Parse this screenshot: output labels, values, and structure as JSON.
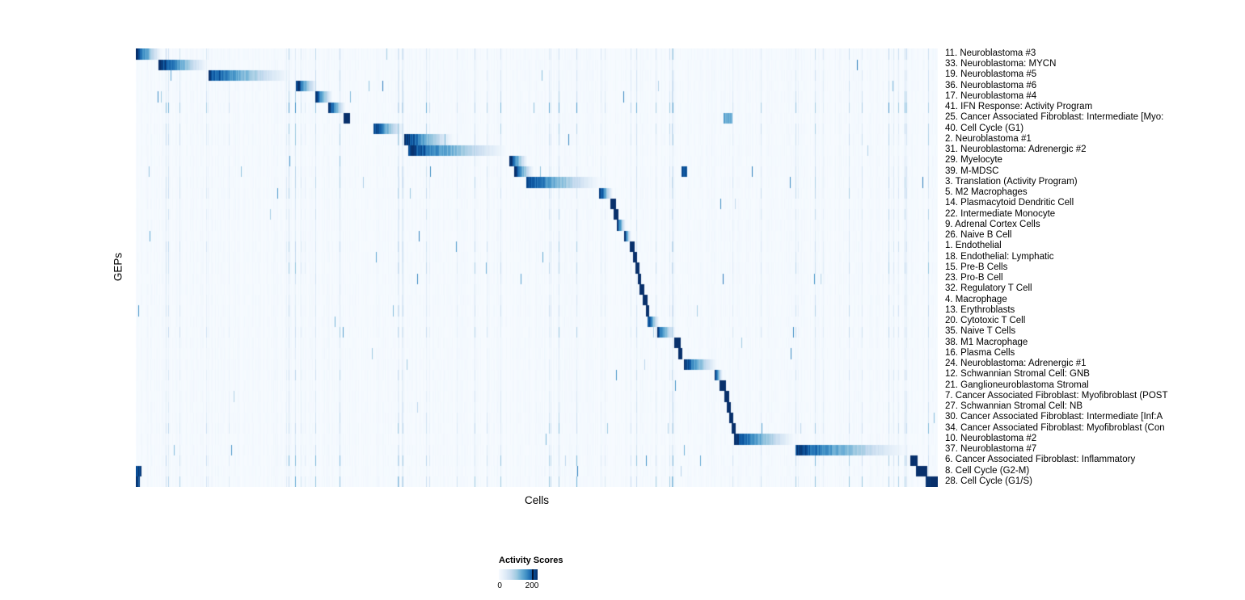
{
  "chart_data": {
    "type": "heatmap",
    "title": "",
    "xlabel": "Cells",
    "ylabel": "GEPs",
    "x_tick_labels": [],
    "grid": false,
    "layout": {
      "legend_position": "bottom-left",
      "row_labels_position": "right"
    },
    "colormap": {
      "name": "Blues",
      "low": "#f7fbff",
      "high": "#08306b"
    },
    "colorbar": {
      "title": "Activity Scores",
      "min": 0,
      "max": 200,
      "tick_labels": [
        "0",
        "200"
      ]
    },
    "n_rows": 41,
    "rows": [
      {
        "label": "11. Neuroblastoma #3",
        "block": [
          0.0,
          0.033
        ],
        "peak": 1.1,
        "fade": true
      },
      {
        "label": "33. Neuroblastoma: MYCN",
        "block": [
          0.028,
          0.091
        ],
        "peak": 1.1,
        "fade": true
      },
      {
        "label": "19. Neuroblastoma #5",
        "block": [
          0.091,
          0.195
        ],
        "peak": 0.95,
        "fade": true
      },
      {
        "label": "36. Neuroblastoma #6",
        "block": [
          0.2,
          0.227
        ],
        "peak": 1.05,
        "fade": true
      },
      {
        "label": "17. Neuroblastoma #4",
        "block": [
          0.224,
          0.246
        ],
        "peak": 1.05,
        "fade": true
      },
      {
        "label": "41. IFN Response: Activity Program",
        "block": [
          0.24,
          0.262
        ],
        "peak": 1.1,
        "fade": true,
        "noise": 1.8
      },
      {
        "label": "25. Cancer Associated Fibroblast: Intermediate [Myo:",
        "block": [
          0.259,
          0.267
        ],
        "peak": 1.15,
        "fade": false,
        "block2": [
          0.733,
          0.744,
          0.55
        ]
      },
      {
        "label": "40. Cell Cycle (G1)",
        "block": [
          0.296,
          0.336
        ],
        "peak": 1.05,
        "fade": true,
        "noise": 1.4
      },
      {
        "label": "2. Neuroblastoma #1",
        "block": [
          0.335,
          0.398
        ],
        "peak": 1.05,
        "fade": true
      },
      {
        "label": "31. Neuroblastoma: Adrenergic #2",
        "block": [
          0.34,
          0.466
        ],
        "peak": 1.0,
        "fade": true
      },
      {
        "label": "29. Myelocyte",
        "block": [
          0.466,
          0.489
        ],
        "peak": 1.05,
        "fade": true
      },
      {
        "label": "39. M-MDSC",
        "block": [
          0.472,
          0.497
        ],
        "peak": 1.0,
        "fade": true,
        "block2": [
          0.68,
          0.688,
          0.85
        ]
      },
      {
        "label": "3. Translation (Activity Program)",
        "block": [
          0.487,
          0.582
        ],
        "peak": 0.95,
        "fade": true,
        "noise": 1.3
      },
      {
        "label": "5. M2 Macrophages",
        "block": [
          0.578,
          0.595
        ],
        "peak": 1.1,
        "fade": true
      },
      {
        "label": "14. Plasmacytoid Dendritic Cell",
        "block": [
          0.592,
          0.599
        ],
        "peak": 1.15,
        "fade": false
      },
      {
        "label": "22. Intermediate Monocyte",
        "block": [
          0.596,
          0.602
        ],
        "peak": 1.15,
        "fade": false
      },
      {
        "label": "9. Adrenal Cortex Cells",
        "block": [
          0.6,
          0.611
        ],
        "peak": 1.1,
        "fade": true
      },
      {
        "label": "26. Naive B Cell",
        "block": [
          0.609,
          0.618
        ],
        "peak": 1.1,
        "fade": true
      },
      {
        "label": "1. Endothelial",
        "block": [
          0.616,
          0.622
        ],
        "peak": 1.15,
        "fade": false
      },
      {
        "label": "18. Endothelial: Lymphatic",
        "block": [
          0.62,
          0.625
        ],
        "peak": 1.15,
        "fade": false
      },
      {
        "label": "15. Pre-B Cells",
        "block": [
          0.623,
          0.628
        ],
        "peak": 1.15,
        "fade": false
      },
      {
        "label": "23. Pro-B Cell",
        "block": [
          0.626,
          0.63
        ],
        "peak": 1.15,
        "fade": false
      },
      {
        "label": "32. Regulatory T Cell",
        "block": [
          0.628,
          0.634
        ],
        "peak": 1.15,
        "fade": false
      },
      {
        "label": "4. Macrophage",
        "block": [
          0.632,
          0.638
        ],
        "peak": 1.15,
        "fade": false,
        "noise": 1.3
      },
      {
        "label": "13. Erythroblasts",
        "block": [
          0.636,
          0.64
        ],
        "peak": 1.15,
        "fade": false
      },
      {
        "label": "20. Cytotoxic T Cell",
        "block": [
          0.638,
          0.653
        ],
        "peak": 1.05,
        "fade": true,
        "noise": 1.3
      },
      {
        "label": "35. Naive T Cells",
        "block": [
          0.65,
          0.674
        ],
        "peak": 1.0,
        "fade": true,
        "noise": 1.3
      },
      {
        "label": "38. M1 Macrophage",
        "block": [
          0.671,
          0.679
        ],
        "peak": 1.15,
        "fade": false
      },
      {
        "label": "16. Plasma Cells",
        "block": [
          0.676,
          0.681
        ],
        "peak": 1.15,
        "fade": false
      },
      {
        "label": "24. Neuroblastoma: Adrenergic #1",
        "block": [
          0.683,
          0.726
        ],
        "peak": 1.0,
        "fade": true
      },
      {
        "label": "12. Schwannian Stromal Cell: GNB",
        "block": [
          0.722,
          0.732
        ],
        "peak": 1.1,
        "fade": true
      },
      {
        "label": "21. Ganglioneuroblastoma Stromal",
        "block": [
          0.728,
          0.736
        ],
        "peak": 1.1,
        "fade": false
      },
      {
        "label": "7. Cancer Associated Fibroblast: Myofibroblast (POST",
        "block": [
          0.734,
          0.74
        ],
        "peak": 1.15,
        "fade": false
      },
      {
        "label": "27. Schwannian Stromal Cell: NB",
        "block": [
          0.737,
          0.742
        ],
        "peak": 1.15,
        "fade": false
      },
      {
        "label": "30. Cancer Associated Fibroblast: Intermediate [Inf:A",
        "block": [
          0.74,
          0.745
        ],
        "peak": 1.15,
        "fade": false
      },
      {
        "label": "34. Cancer Associated Fibroblast: Myofibroblast (Con",
        "block": [
          0.743,
          0.748
        ],
        "peak": 1.15,
        "fade": false
      },
      {
        "label": "10. Neuroblastoma #2",
        "block": [
          0.746,
          0.824
        ],
        "peak": 1.0,
        "fade": true
      },
      {
        "label": "37. Neuroblastoma #7",
        "block": [
          0.823,
          0.966
        ],
        "peak": 0.95,
        "fade": true
      },
      {
        "label": "6. Cancer Associated Fibroblast: Inflammatory",
        "block": [
          0.966,
          0.975
        ],
        "peak": 1.1,
        "fade": false,
        "noise": 1.3
      },
      {
        "label": "8. Cell Cycle (G2-M)",
        "block": [
          0.973,
          0.987
        ],
        "peak": 1.1,
        "fade": false,
        "block2": [
          0.0,
          0.007,
          1.0
        ],
        "noise": 1.4
      },
      {
        "label": "28. Cell Cycle (G1/S)",
        "block": [
          0.985,
          1.001
        ],
        "peak": 1.1,
        "fade": false,
        "block2": [
          0.0,
          0.005,
          0.9
        ],
        "noise": 1.4
      }
    ]
  }
}
